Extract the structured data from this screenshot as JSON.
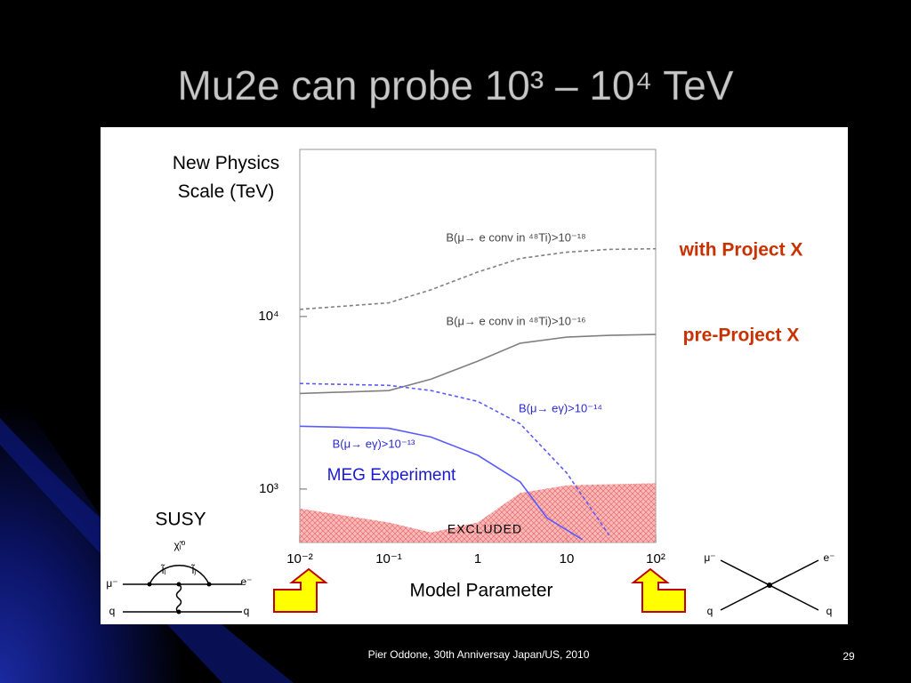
{
  "title": "Mu2e can probe 10³ – 10⁴ TeV",
  "footer": {
    "author": "Pier Oddone,  30th Anniversay Japan/US, 2010",
    "page": "29"
  },
  "chart_data": {
    "type": "line",
    "log_x": true,
    "log_y": true,
    "y_label": "New Physics Scale (TeV)",
    "x_label": "Model Parameter",
    "xlim": [
      0.01,
      100
    ],
    "ylim": [
      490,
      93000
    ],
    "xticks": [
      {
        "value": 0.01,
        "label": "10⁻²"
      },
      {
        "value": 0.1,
        "label": "10⁻¹"
      },
      1,
      10,
      {
        "value": 100,
        "label": "10²"
      }
    ],
    "yticks": [
      {
        "value": 1000,
        "label": "10³"
      },
      {
        "value": 10000,
        "label": "10⁴"
      }
    ],
    "series": [
      {
        "name": "B(μ→ e conv in ⁴⁸Ti)>10⁻¹⁸",
        "color": "#808080",
        "style": "dashed",
        "x": [
          0.01,
          0.1,
          0.3,
          1,
          3,
          10,
          30,
          100
        ],
        "values": [
          11000,
          12000,
          14300,
          18100,
          21700,
          23600,
          24500,
          24700
        ]
      },
      {
        "name": "B(μ→ e conv in ⁴⁸Ti)>10⁻¹⁶",
        "color": "#808080",
        "style": "solid",
        "x": [
          0.01,
          0.1,
          0.3,
          1,
          3,
          10,
          30,
          100
        ],
        "values": [
          3580,
          3720,
          4340,
          5510,
          7000,
          7600,
          7780,
          7870
        ]
      },
      {
        "name": "B(μ→ eγ)>10⁻¹⁴",
        "color": "#5a5aff",
        "style": "dashed",
        "x": [
          0.01,
          0.1,
          0.3,
          1,
          3,
          10,
          30
        ],
        "values": [
          4090,
          3990,
          3720,
          3220,
          2390,
          1240,
          540
        ]
      },
      {
        "name": "B(μ→ eγ)>10⁻¹³",
        "color": "#5a5aff",
        "style": "solid",
        "x": [
          0.01,
          0.1,
          0.3,
          1,
          3,
          6,
          15
        ],
        "values": [
          2310,
          2250,
          2000,
          1570,
          1100,
          680,
          510
        ]
      }
    ],
    "excluded": {
      "name": "EXCLUDED",
      "color": "#f4a0a0",
      "x": [
        0.01,
        0.1,
        0.3,
        1,
        3,
        10,
        100
      ],
      "values": [
        770,
        640,
        560,
        640,
        950,
        1050,
        1080
      ]
    },
    "annotations": {
      "with_project_x": "with Project X",
      "pre_project_x": "pre-Project X",
      "meg": "MEG Experiment"
    }
  },
  "diagrams": {
    "susy": {
      "title": "SUSY",
      "neutralino": "χ̃ᵢ⁰",
      "slepton_i": "l̃ᵢ",
      "slepton_j": "l̃ⱼ",
      "muon": "μ⁻",
      "electron": "e⁻",
      "quark_in": "q",
      "quark_out": "q"
    },
    "contact": {
      "muon": "μ⁻",
      "electron": "e⁻",
      "quark_in": "q",
      "quark_out": "q"
    }
  }
}
